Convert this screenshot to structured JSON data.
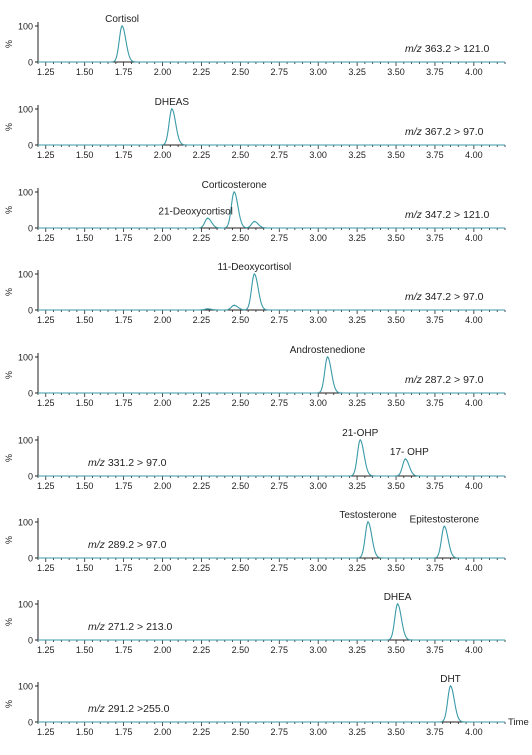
{
  "chart_data": [
    {
      "type": "line",
      "mz_label": "363.2 > 121.0",
      "peaks": [
        {
          "label": "Cortisol",
          "rt": 1.74,
          "intensity": 100
        }
      ],
      "unlabeled_peaks": [],
      "x_ticks": [
        "1.25",
        "1.50",
        "1.75",
        "2.00",
        "2.25",
        "2.50",
        "2.75",
        "3.00",
        "3.25",
        "3.50",
        "3.75",
        "4.00"
      ],
      "y_ticks": [
        "100",
        "0"
      ],
      "ylabel": "%",
      "xlim": [
        1.2,
        4.2
      ],
      "ylim": [
        0,
        100
      ],
      "color": "#3a9aa8"
    },
    {
      "type": "line",
      "mz_label": "367.2 > 97.0",
      "peaks": [
        {
          "label": "DHEAS",
          "rt": 2.06,
          "intensity": 100
        }
      ],
      "unlabeled_peaks": [],
      "x_ticks": [
        "1.25",
        "1.50",
        "1.75",
        "2.00",
        "2.25",
        "2.50",
        "2.75",
        "3.00",
        "3.25",
        "3.50",
        "3.75",
        "4.00"
      ],
      "y_ticks": [
        "100",
        "0"
      ],
      "ylabel": "%",
      "xlim": [
        1.2,
        4.2
      ],
      "ylim": [
        0,
        100
      ],
      "color": "#3a9aa8"
    },
    {
      "type": "line",
      "mz_label": "347.2 > 121.0",
      "peaks": [
        {
          "label": "21-Deoxycortisol",
          "rt": 2.29,
          "intensity": 27
        },
        {
          "label": "Corticosterone",
          "rt": 2.46,
          "intensity": 100
        }
      ],
      "unlabeled_peaks": [
        {
          "rt": 2.59,
          "intensity": 18
        }
      ],
      "x_ticks": [
        "1.25",
        "1.50",
        "1.75",
        "2.00",
        "2.25",
        "2.50",
        "2.75",
        "3.00",
        "3.25",
        "3.50",
        "3.75",
        "4.00"
      ],
      "y_ticks": [
        "100",
        "0"
      ],
      "ylabel": "%",
      "xlim": [
        1.2,
        4.2
      ],
      "ylim": [
        0,
        100
      ],
      "color": "#3a9aa8"
    },
    {
      "type": "line",
      "mz_label": "347.2 > 97.0",
      "peaks": [
        {
          "label": "11-Deoxycortisol",
          "rt": 2.59,
          "intensity": 100
        }
      ],
      "unlabeled_peaks": [
        {
          "rt": 2.46,
          "intensity": 13
        },
        {
          "rt": 2.29,
          "intensity": 3
        }
      ],
      "x_ticks": [
        "1.25",
        "1.50",
        "1.75",
        "2.00",
        "2.25",
        "2.50",
        "2.75",
        "3.00",
        "3.25",
        "3.50",
        "3.75",
        "4.00"
      ],
      "y_ticks": [
        "100",
        "0"
      ],
      "ylabel": "%",
      "xlim": [
        1.2,
        4.2
      ],
      "ylim": [
        0,
        100
      ],
      "color": "#3a9aa8"
    },
    {
      "type": "line",
      "mz_label": "287.2 > 97.0",
      "peaks": [
        {
          "label": "Androstenedione",
          "rt": 3.06,
          "intensity": 100
        }
      ],
      "unlabeled_peaks": [],
      "x_ticks": [
        "1.25",
        "1.50",
        "1.75",
        "2.00",
        "2.25",
        "2.50",
        "2.75",
        "3.00",
        "3.25",
        "3.50",
        "3.75",
        "4.00"
      ],
      "y_ticks": [
        "100",
        "0"
      ],
      "ylabel": "%",
      "xlim": [
        1.2,
        4.2
      ],
      "ylim": [
        0,
        100
      ],
      "color": "#3a9aa8"
    },
    {
      "type": "line",
      "mz_label": "331.2 > 97.0",
      "peaks": [
        {
          "label": "21-OHP",
          "rt": 3.27,
          "intensity": 100
        },
        {
          "label": "17- OHP",
          "rt": 3.56,
          "intensity": 47
        }
      ],
      "unlabeled_peaks": [],
      "x_ticks": [
        "1.25",
        "1.50",
        "1.75",
        "2.00",
        "2.25",
        "2.50",
        "2.75",
        "3.00",
        "3.25",
        "3.50",
        "3.75",
        "4.00"
      ],
      "y_ticks": [
        "100",
        "0"
      ],
      "ylabel": "%",
      "xlim": [
        1.2,
        4.2
      ],
      "ylim": [
        0,
        100
      ],
      "color": "#3a9aa8"
    },
    {
      "type": "line",
      "mz_label": "289.2 > 97.0",
      "peaks": [
        {
          "label": "Testosterone",
          "rt": 3.32,
          "intensity": 100
        },
        {
          "label": "Epitestosterone",
          "rt": 3.81,
          "intensity": 88
        }
      ],
      "unlabeled_peaks": [],
      "x_ticks": [
        "1.25",
        "1.50",
        "1.75",
        "2.00",
        "2.25",
        "2.50",
        "2.75",
        "3.00",
        "3.25",
        "3.50",
        "3.75",
        "4.00"
      ],
      "y_ticks": [
        "100",
        "0"
      ],
      "ylabel": "%",
      "xlim": [
        1.2,
        4.2
      ],
      "ylim": [
        0,
        100
      ],
      "color": "#3a9aa8"
    },
    {
      "type": "line",
      "mz_label": "271.2 > 213.0",
      "peaks": [
        {
          "label": "DHEA",
          "rt": 3.51,
          "intensity": 100
        }
      ],
      "unlabeled_peaks": [],
      "x_ticks": [
        "1.25",
        "1.50",
        "1.75",
        "2.00",
        "2.25",
        "2.50",
        "2.75",
        "3.00",
        "3.25",
        "3.50",
        "3.75",
        "4.00"
      ],
      "y_ticks": [
        "100",
        "0"
      ],
      "ylabel": "%",
      "xlim": [
        1.2,
        4.2
      ],
      "ylim": [
        0,
        100
      ],
      "color": "#3a9aa8"
    },
    {
      "type": "line",
      "mz_label": "291.2 >255.0",
      "peaks": [
        {
          "label": "DHT",
          "rt": 3.85,
          "intensity": 100
        }
      ],
      "unlabeled_peaks": [],
      "x_ticks": [
        "1.25",
        "1.50",
        "1.75",
        "2.00",
        "2.25",
        "2.50",
        "2.75",
        "3.00",
        "3.25",
        "3.50",
        "3.75",
        "4.00"
      ],
      "y_ticks": [
        "100",
        "0"
      ],
      "ylabel": "%",
      "xlim": [
        1.2,
        4.2
      ],
      "ylim": [
        0,
        100
      ],
      "xlabel": "Time",
      "color": "#3a9aa8"
    }
  ]
}
